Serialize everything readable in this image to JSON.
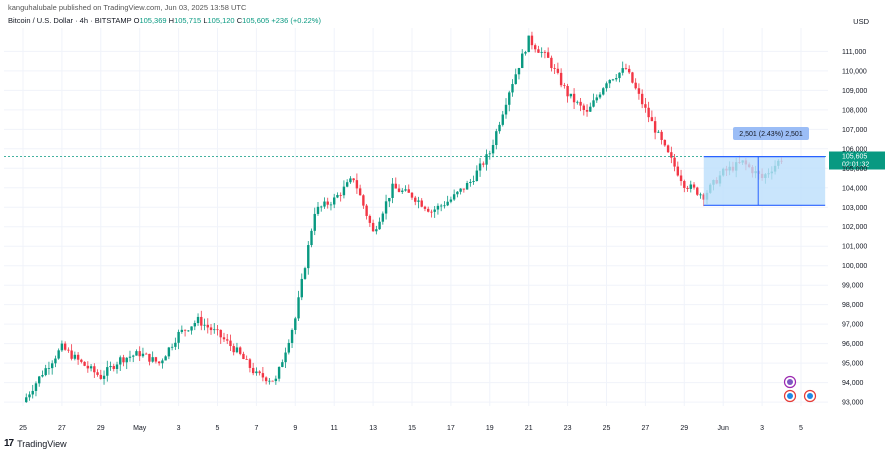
{
  "header": {
    "published": "kanguhalubale published on TradingView.com, Jun 03, 2025 13:58 UTC"
  },
  "symbol": {
    "name": "Bitcoin / U.S. Dollar · 4h · BITSTAMP",
    "open_label": "O",
    "open": "105,369",
    "high_label": "H",
    "high": "105,715",
    "low_label": "L",
    "low": "105,120",
    "close_label": "C",
    "close": "105,605",
    "change": "+236 (+0.22%)"
  },
  "brand": {
    "name": "TradingView",
    "logo": "17"
  },
  "colors": {
    "up": "#089981",
    "down": "#f23645",
    "range_fill": "#bbdefb",
    "range_line": "#2962ff"
  },
  "chart_data": {
    "type": "candlestick",
    "currency": "USD",
    "ylim": [
      92800,
      112200
    ],
    "y_ticks": [
      93000,
      94000,
      95000,
      96000,
      97000,
      98000,
      99000,
      100000,
      101000,
      102000,
      103000,
      104000,
      105000,
      106000,
      107000,
      108000,
      109000,
      110000,
      111000
    ],
    "y_tick_labels": [
      "93,000",
      "94,000",
      "95,000",
      "96,000",
      "97,000",
      "98,000",
      "99,000",
      "100,000",
      "101,000",
      "102,000",
      "103,000",
      "104,000",
      "105,000",
      "106,000",
      "107,000",
      "108,000",
      "109,000",
      "110,000",
      "111,000"
    ],
    "x_ticks": [
      "25",
      "27",
      "29",
      "May",
      "3",
      "5",
      "7",
      "9",
      "11",
      "13",
      "15",
      "17",
      "19",
      "21",
      "23",
      "25",
      "27",
      "29",
      "Jun",
      "3",
      "5"
    ],
    "last_price": 105605,
    "last_price_label": "105,605",
    "countdown": "02:01:32",
    "price_line": 105605,
    "trend": [
      [
        0,
        93000
      ],
      [
        1,
        94500
      ],
      [
        2,
        95800
      ],
      [
        3,
        95000
      ],
      [
        4,
        94300
      ],
      [
        5,
        95200
      ],
      [
        6,
        95500
      ],
      [
        7,
        95000
      ],
      [
        8,
        96500
      ],
      [
        9,
        97200
      ],
      [
        10,
        96500
      ],
      [
        11,
        95600
      ],
      [
        12,
        94400
      ],
      [
        13,
        94100
      ],
      [
        14,
        97300
      ],
      [
        15,
        102800
      ],
      [
        16,
        103400
      ],
      [
        17,
        104500
      ],
      [
        18,
        101700
      ],
      [
        19,
        104000
      ],
      [
        20,
        103600
      ],
      [
        21,
        102800
      ],
      [
        22,
        103400
      ],
      [
        23,
        104300
      ],
      [
        24,
        105800
      ],
      [
        25,
        109000
      ],
      [
        26,
        111600
      ],
      [
        27,
        110600
      ],
      [
        28,
        108800
      ],
      [
        29,
        107800
      ],
      [
        30,
        109500
      ],
      [
        31,
        110100
      ],
      [
        32,
        108000
      ],
      [
        33,
        106000
      ],
      [
        34,
        104200
      ],
      [
        35,
        103600
      ],
      [
        36,
        104800
      ],
      [
        37,
        105300
      ],
      [
        38,
        104500
      ],
      [
        39,
        105500
      ]
    ],
    "measure": {
      "label": "2,501 (2.43%) 2,501",
      "high": 105600,
      "low": 103100,
      "from_day": 35.0,
      "to_day": 39.7,
      "vertical_day": 37.8
    },
    "event_icons": [
      "lightning-icon",
      "us-flag-icon",
      "us-flag-icon"
    ]
  }
}
